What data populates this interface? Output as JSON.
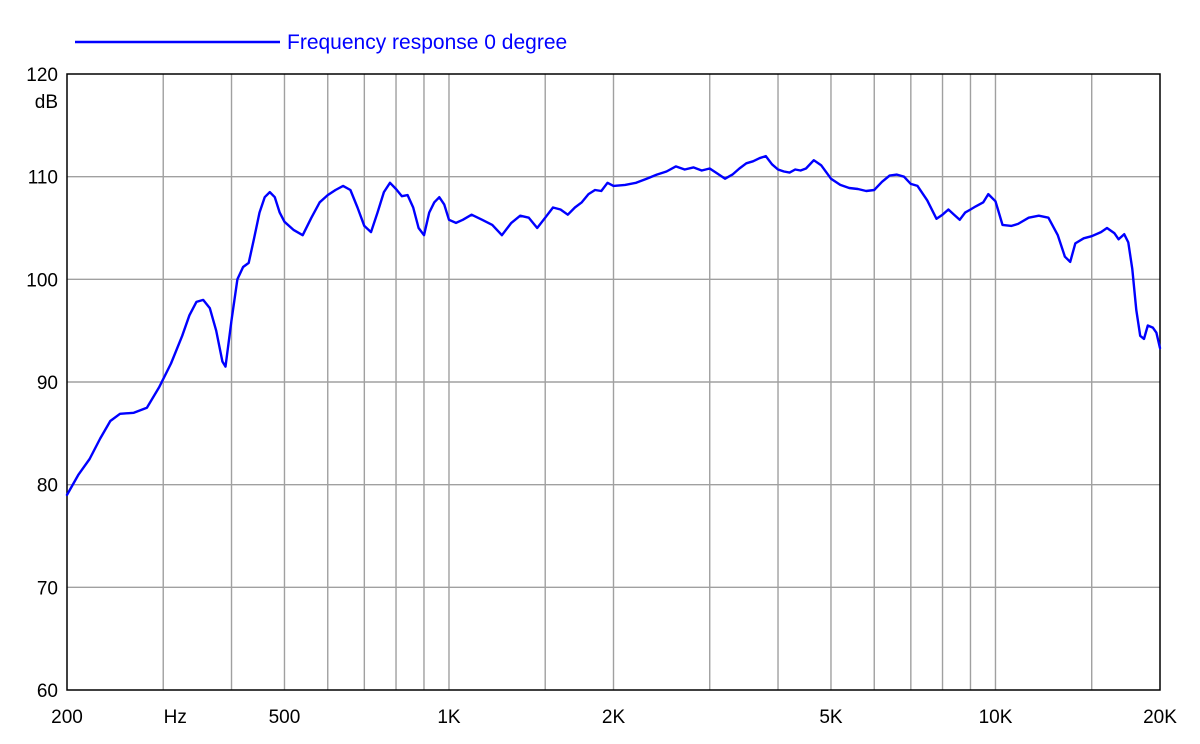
{
  "chart_data": {
    "type": "line",
    "title": "",
    "xlabel": "Hz",
    "ylabel": "dB",
    "x_scale": "log",
    "xlim": [
      200,
      20000
    ],
    "ylim": [
      60,
      120
    ],
    "x_major_ticks": [
      200,
      500,
      1000,
      2000,
      5000,
      10000,
      20000
    ],
    "x_tick_labels": [
      "200",
      "500",
      "1K",
      "2K",
      "5K",
      "10K",
      "20K"
    ],
    "x_grid": [
      300,
      400,
      500,
      600,
      700,
      800,
      900,
      1000,
      1500,
      2000,
      3000,
      4000,
      5000,
      6000,
      7000,
      8000,
      9000,
      10000,
      15000
    ],
    "y_ticks": [
      60,
      70,
      80,
      90,
      100,
      110,
      120
    ],
    "y_tick_labels": [
      "60",
      "70",
      "80",
      "90",
      "100",
      "110",
      "120"
    ],
    "grid": true,
    "legend_position": "top-left",
    "colors": {
      "series": "#0000ff",
      "grid": "#a0a0a0",
      "frame": "#000000"
    },
    "series": [
      {
        "name": "Frequency response 0 degree",
        "points": [
          [
            200,
            79.0
          ],
          [
            210,
            81.0
          ],
          [
            220,
            82.5
          ],
          [
            230,
            84.5
          ],
          [
            240,
            86.2
          ],
          [
            250,
            86.9
          ],
          [
            265,
            87.0
          ],
          [
            280,
            87.5
          ],
          [
            295,
            89.5
          ],
          [
            310,
            91.8
          ],
          [
            325,
            94.5
          ],
          [
            335,
            96.5
          ],
          [
            345,
            97.8
          ],
          [
            355,
            98.0
          ],
          [
            365,
            97.2
          ],
          [
            375,
            95.0
          ],
          [
            385,
            92.0
          ],
          [
            390,
            91.5
          ],
          [
            400,
            96.0
          ],
          [
            410,
            100.0
          ],
          [
            420,
            101.2
          ],
          [
            430,
            101.6
          ],
          [
            440,
            104.0
          ],
          [
            450,
            106.5
          ],
          [
            460,
            108.0
          ],
          [
            470,
            108.5
          ],
          [
            480,
            108.0
          ],
          [
            490,
            106.5
          ],
          [
            500,
            105.6
          ],
          [
            520,
            104.8
          ],
          [
            540,
            104.3
          ],
          [
            560,
            106.0
          ],
          [
            580,
            107.5
          ],
          [
            600,
            108.2
          ],
          [
            620,
            108.7
          ],
          [
            640,
            109.1
          ],
          [
            660,
            108.7
          ],
          [
            680,
            107.0
          ],
          [
            700,
            105.2
          ],
          [
            720,
            104.6
          ],
          [
            740,
            106.5
          ],
          [
            760,
            108.5
          ],
          [
            780,
            109.4
          ],
          [
            800,
            108.8
          ],
          [
            820,
            108.1
          ],
          [
            840,
            108.2
          ],
          [
            860,
            107.0
          ],
          [
            880,
            105.0
          ],
          [
            900,
            104.3
          ],
          [
            920,
            106.5
          ],
          [
            940,
            107.5
          ],
          [
            960,
            108.0
          ],
          [
            980,
            107.3
          ],
          [
            1000,
            105.8
          ],
          [
            1030,
            105.5
          ],
          [
            1060,
            105.8
          ],
          [
            1100,
            106.3
          ],
          [
            1150,
            105.8
          ],
          [
            1200,
            105.3
          ],
          [
            1250,
            104.3
          ],
          [
            1300,
            105.5
          ],
          [
            1350,
            106.2
          ],
          [
            1400,
            106.0
          ],
          [
            1450,
            105.0
          ],
          [
            1500,
            106.0
          ],
          [
            1550,
            107.0
          ],
          [
            1600,
            106.8
          ],
          [
            1650,
            106.3
          ],
          [
            1700,
            107.0
          ],
          [
            1750,
            107.5
          ],
          [
            1800,
            108.3
          ],
          [
            1850,
            108.7
          ],
          [
            1900,
            108.6
          ],
          [
            1950,
            109.4
          ],
          [
            2000,
            109.1
          ],
          [
            2100,
            109.2
          ],
          [
            2200,
            109.4
          ],
          [
            2300,
            109.8
          ],
          [
            2400,
            110.2
          ],
          [
            2500,
            110.5
          ],
          [
            2600,
            111.0
          ],
          [
            2700,
            110.7
          ],
          [
            2800,
            110.9
          ],
          [
            2900,
            110.6
          ],
          [
            3000,
            110.8
          ],
          [
            3100,
            110.3
          ],
          [
            3200,
            109.8
          ],
          [
            3300,
            110.2
          ],
          [
            3400,
            110.8
          ],
          [
            3500,
            111.3
          ],
          [
            3600,
            111.5
          ],
          [
            3700,
            111.8
          ],
          [
            3800,
            112.0
          ],
          [
            3900,
            111.2
          ],
          [
            4000,
            110.7
          ],
          [
            4100,
            110.5
          ],
          [
            4200,
            110.4
          ],
          [
            4300,
            110.7
          ],
          [
            4400,
            110.6
          ],
          [
            4500,
            110.8
          ],
          [
            4650,
            111.6
          ],
          [
            4800,
            111.1
          ],
          [
            5000,
            109.8
          ],
          [
            5200,
            109.2
          ],
          [
            5400,
            108.9
          ],
          [
            5600,
            108.8
          ],
          [
            5800,
            108.6
          ],
          [
            6000,
            108.7
          ],
          [
            6200,
            109.5
          ],
          [
            6400,
            110.1
          ],
          [
            6600,
            110.2
          ],
          [
            6800,
            110.0
          ],
          [
            7000,
            109.3
          ],
          [
            7200,
            109.1
          ],
          [
            7500,
            107.7
          ],
          [
            7800,
            105.9
          ],
          [
            8000,
            106.3
          ],
          [
            8200,
            106.8
          ],
          [
            8400,
            106.3
          ],
          [
            8600,
            105.8
          ],
          [
            8800,
            106.5
          ],
          [
            9000,
            106.8
          ],
          [
            9200,
            107.1
          ],
          [
            9500,
            107.5
          ],
          [
            9700,
            108.3
          ],
          [
            10000,
            107.6
          ],
          [
            10300,
            105.3
          ],
          [
            10700,
            105.2
          ],
          [
            11000,
            105.4
          ],
          [
            11500,
            106.0
          ],
          [
            12000,
            106.2
          ],
          [
            12500,
            106.0
          ],
          [
            13000,
            104.3
          ],
          [
            13400,
            102.2
          ],
          [
            13700,
            101.7
          ],
          [
            14000,
            103.5
          ],
          [
            14500,
            104.0
          ],
          [
            15000,
            104.2
          ],
          [
            15600,
            104.6
          ],
          [
            16000,
            105.0
          ],
          [
            16500,
            104.5
          ],
          [
            16800,
            103.9
          ],
          [
            17200,
            104.4
          ],
          [
            17500,
            103.6
          ],
          [
            17800,
            101.0
          ],
          [
            18100,
            97.0
          ],
          [
            18400,
            94.5
          ],
          [
            18700,
            94.2
          ],
          [
            19000,
            95.5
          ],
          [
            19400,
            95.3
          ],
          [
            19700,
            94.8
          ],
          [
            20000,
            93.3
          ]
        ]
      }
    ]
  }
}
